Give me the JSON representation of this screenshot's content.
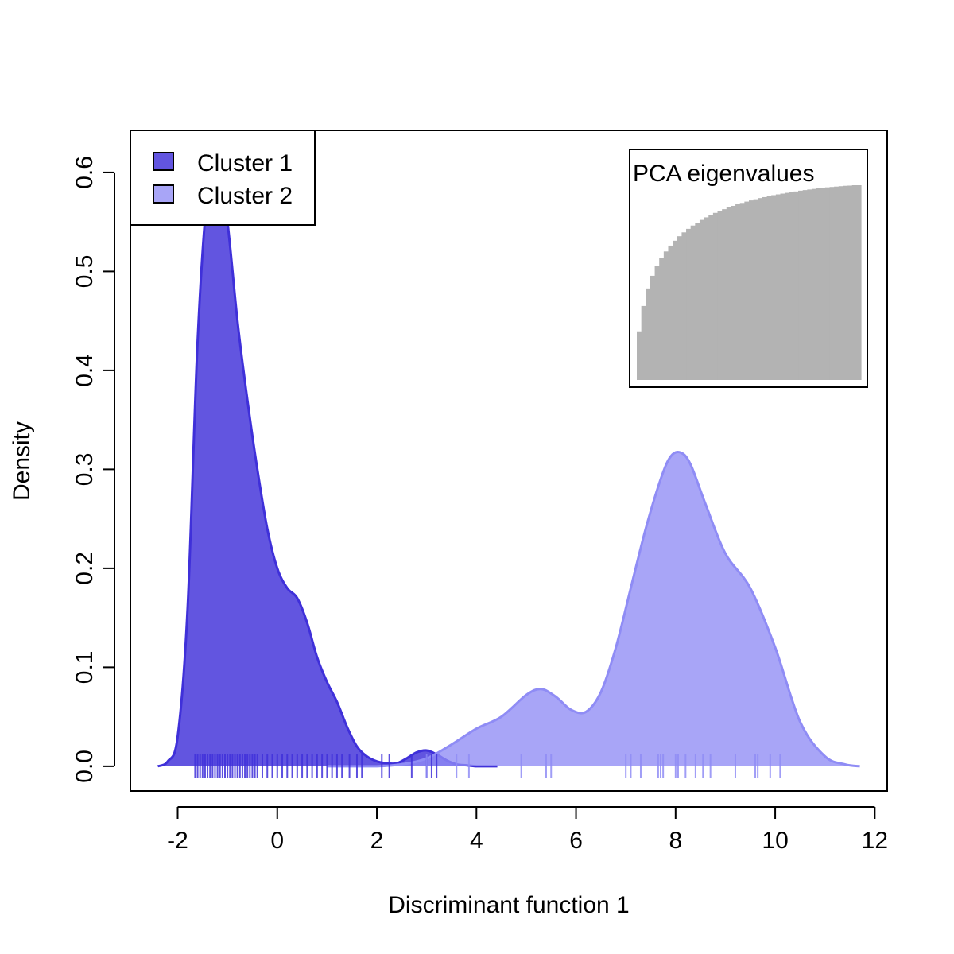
{
  "chart_data": {
    "type": "area",
    "title": "",
    "xlabel": "Discriminant function 1",
    "ylabel": "Density",
    "xlim": [
      -2.95,
      12.25
    ],
    "ylim": [
      -0.025,
      0.6425
    ],
    "x_ticks": [
      -2,
      0,
      2,
      4,
      6,
      8,
      10,
      12
    ],
    "x_tick_labels": [
      "-2",
      "0",
      "2",
      "4",
      "6",
      "8",
      "10",
      "12"
    ],
    "y_ticks": [
      0.0,
      0.1,
      0.2,
      0.3,
      0.4,
      0.5,
      0.6
    ],
    "y_tick_labels": [
      "0.0",
      "0.1",
      "0.2",
      "0.3",
      "0.4",
      "0.5",
      "0.6"
    ],
    "grid": false,
    "legend_position": "top-left",
    "series": [
      {
        "name": "Cluster 1",
        "color": "#3F30D9",
        "fill_opacity": 0.82,
        "x": [
          -2.4,
          -2.2,
          -2.0,
          -1.8,
          -1.6,
          -1.4,
          -1.2,
          -1.0,
          -0.8,
          -0.6,
          -0.4,
          -0.2,
          0.0,
          0.2,
          0.4,
          0.6,
          0.8,
          1.0,
          1.2,
          1.4,
          1.6,
          1.8,
          2.0,
          2.2,
          2.4,
          2.6,
          2.8,
          3.0,
          3.2,
          3.4,
          3.6,
          3.8,
          4.0,
          4.2,
          4.42
        ],
        "y": [
          0.0,
          0.005,
          0.03,
          0.16,
          0.43,
          0.58,
          0.615,
          0.55,
          0.45,
          0.37,
          0.3,
          0.24,
          0.2,
          0.18,
          0.17,
          0.145,
          0.11,
          0.085,
          0.065,
          0.04,
          0.02,
          0.01,
          0.005,
          0.003,
          0.003,
          0.008,
          0.014,
          0.016,
          0.012,
          0.006,
          0.002,
          0.001,
          0.0,
          0.0,
          0.0
        ]
      },
      {
        "name": "Cluster 2",
        "color": "#8F8CF5",
        "fill_opacity": 0.78,
        "x": [
          1.0,
          1.5,
          2.0,
          2.5,
          3.0,
          3.5,
          4.0,
          4.5,
          5.0,
          5.3,
          5.6,
          5.9,
          6.2,
          6.5,
          6.8,
          7.1,
          7.4,
          7.7,
          7.9,
          8.1,
          8.3,
          8.6,
          9.0,
          9.5,
          10.0,
          10.5,
          11.0,
          11.4,
          11.7
        ],
        "y": [
          0.0,
          0.0,
          0.0,
          0.002,
          0.008,
          0.022,
          0.038,
          0.05,
          0.072,
          0.078,
          0.07,
          0.057,
          0.055,
          0.075,
          0.12,
          0.18,
          0.24,
          0.29,
          0.313,
          0.317,
          0.305,
          0.265,
          0.215,
          0.18,
          0.12,
          0.045,
          0.01,
          0.002,
          0.0
        ]
      }
    ],
    "rug": [
      {
        "series": "Cluster 1",
        "x": [
          -1.65,
          -1.6,
          -1.55,
          -1.5,
          -1.45,
          -1.4,
          -1.35,
          -1.3,
          -1.25,
          -1.2,
          -1.15,
          -1.1,
          -1.05,
          -1.0,
          -0.95,
          -0.9,
          -0.85,
          -0.8,
          -0.75,
          -0.7,
          -0.65,
          -0.6,
          -0.55,
          -0.5,
          -0.45,
          -0.4,
          -0.3,
          -0.2,
          -0.1,
          0.0,
          0.1,
          0.2,
          0.3,
          0.4,
          0.5,
          0.6,
          0.7,
          0.8,
          0.9,
          1.0,
          1.1,
          1.2,
          1.3,
          1.45,
          1.6,
          1.7,
          2.1,
          2.25,
          2.7,
          3.0,
          3.1,
          3.2
        ]
      },
      {
        "series": "Cluster 2",
        "x": [
          3.0,
          3.6,
          3.85,
          4.9,
          5.4,
          5.5,
          7.0,
          7.1,
          7.3,
          7.65,
          7.7,
          7.75,
          8.0,
          8.05,
          8.2,
          8.4,
          8.55,
          8.7,
          9.2,
          9.6,
          9.65,
          9.9,
          10.1
        ]
      }
    ],
    "inset": {
      "title": "PCA eigenvalues",
      "fill_color": "#B3B3B3",
      "values": [
        0.25,
        0.38,
        0.47,
        0.535,
        0.585,
        0.625,
        0.66,
        0.69,
        0.715,
        0.738,
        0.758,
        0.776,
        0.793,
        0.808,
        0.822,
        0.835,
        0.847,
        0.858,
        0.868,
        0.877,
        0.886,
        0.894,
        0.902,
        0.909,
        0.916,
        0.922,
        0.928,
        0.934,
        0.939,
        0.944,
        0.949,
        0.953,
        0.957,
        0.961,
        0.965,
        0.968,
        0.972,
        0.975,
        0.978,
        0.981,
        0.984,
        0.986,
        0.989,
        0.991,
        0.993,
        0.995,
        0.997,
        0.998,
        1.0,
        1.0
      ]
    }
  }
}
